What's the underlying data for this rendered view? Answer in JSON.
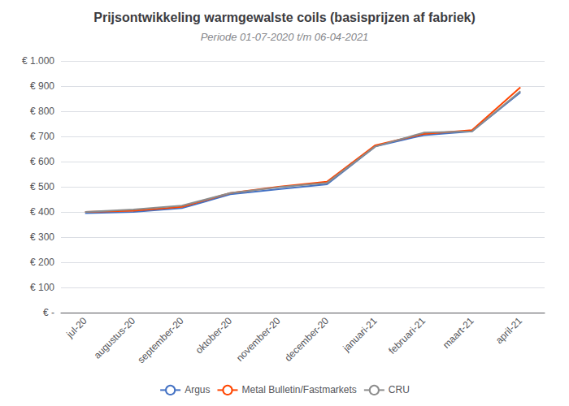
{
  "chart_data": {
    "type": "line",
    "title": "Prijsontwikkeling warmgewalste coils (basisprijzen af fabriek)",
    "subtitle": "Periode 01-07-2020 t/m 06-04-2021",
    "categories": [
      "jul-20",
      "augustus-20",
      "september-20",
      "oktober-20",
      "november-20",
      "december-20",
      "januari-21",
      "februari-21",
      "maart-21",
      "april-21"
    ],
    "series": [
      {
        "name": "Argus",
        "color": "#4472C4",
        "values": [
          395,
          400,
          415,
          470,
          490,
          510,
          660,
          705,
          720,
          875
        ]
      },
      {
        "name": "Metal Bulletin/Fastmarkets",
        "color": "#FF4500",
        "values": [
          400,
          405,
          420,
          475,
          500,
          520,
          665,
          710,
          725,
          895
        ]
      },
      {
        "name": "CRU",
        "color": "#8C8C8C",
        "values": [
          400,
          410,
          425,
          475,
          498,
          515,
          660,
          715,
          720,
          880
        ]
      }
    ],
    "ylim": [
      0,
      1000
    ],
    "yticks": [
      {
        "value": 0,
        "label": "€ -"
      },
      {
        "value": 100,
        "label": "€ 100"
      },
      {
        "value": 200,
        "label": "€ 200"
      },
      {
        "value": 300,
        "label": "€ 300"
      },
      {
        "value": 400,
        "label": "€ 400"
      },
      {
        "value": 500,
        "label": "€ 500"
      },
      {
        "value": 600,
        "label": "€ 600"
      },
      {
        "value": 700,
        "label": "€ 700"
      },
      {
        "value": 800,
        "label": "€ 800"
      },
      {
        "value": 900,
        "label": "€ 900"
      },
      {
        "value": 1000,
        "label": "€ 1.000"
      }
    ],
    "grid": true,
    "legend": "bottom"
  }
}
